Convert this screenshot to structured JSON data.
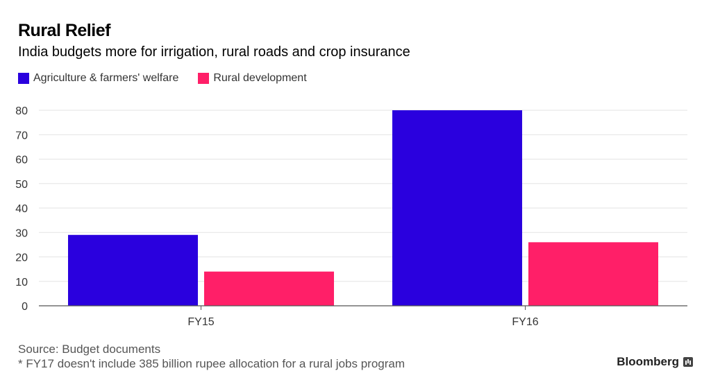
{
  "chart_data": {
    "type": "bar",
    "title": "Rural Relief",
    "subtitle": "India budgets more for irrigation, rural roads and crop insurance",
    "categories": [
      "FY15",
      "FY16"
    ],
    "series": [
      {
        "name": "Agriculture & farmers' welfare",
        "color": "#2a00de",
        "values": [
          29,
          80
        ]
      },
      {
        "name": "Rural development",
        "color": "#ff1f68",
        "values": [
          14,
          26
        ]
      }
    ],
    "ylim": [
      0,
      80
    ],
    "yticks": [
      "0",
      "10",
      "20",
      "30",
      "40",
      "50",
      "60",
      "70",
      "80"
    ],
    "xlabel": "",
    "ylabel": "",
    "grid": true,
    "legend": "top-left"
  },
  "footer": {
    "source": "Source: Budget documents",
    "note": "* FY17 doesn't include 385 billion rupee allocation for a rural jobs program"
  },
  "brand": {
    "name": "Bloomberg",
    "icon": "bar-chart-icon"
  }
}
